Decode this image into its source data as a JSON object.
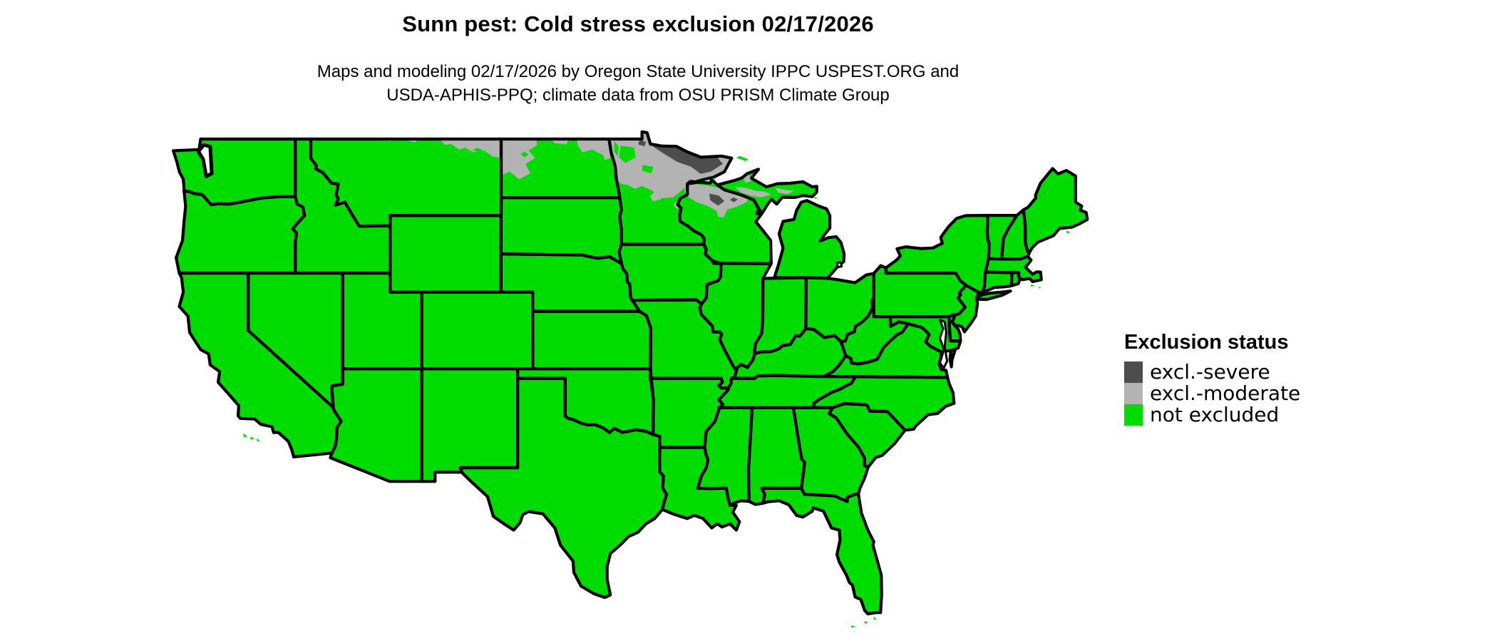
{
  "title": "Sunn pest: Cold stress exclusion 02/17/2026",
  "subtitle": {
    "line1": "Maps and modeling 02/17/2026 by Oregon State University IPPC USPEST.ORG and",
    "line2": "USDA-APHIS-PPQ; climate data from OSU PRISM Climate Group"
  },
  "legend": {
    "title": "Exclusion status",
    "items": [
      {
        "label": "excl.-severe",
        "color": "#4d4d4d"
      },
      {
        "label": "excl.-moderate",
        "color": "#b3b3b3"
      },
      {
        "label": "not excluded",
        "color": "#00dc00"
      }
    ]
  },
  "map": {
    "background": "#ffffff",
    "border_color": "#000000",
    "water_color": "#ffffff",
    "not_excluded_color": "#00dc00",
    "moderate_color": "#b3b3b3",
    "severe_color": "#4d4d4d"
  }
}
